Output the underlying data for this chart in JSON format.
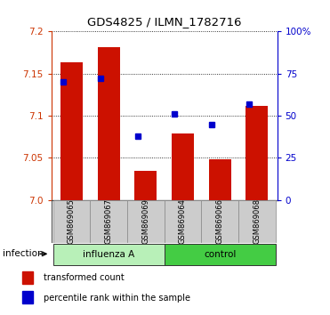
{
  "title": "GDS4825 / ILMN_1782716",
  "samples": [
    "GSM869065",
    "GSM869067",
    "GSM869069",
    "GSM869064",
    "GSM869066",
    "GSM869068"
  ],
  "red_values": [
    7.163,
    7.181,
    7.035,
    7.079,
    7.048,
    7.112
  ],
  "blue_percentiles": [
    70,
    72,
    38,
    51,
    45,
    57
  ],
  "y_min": 7.0,
  "y_max": 7.2,
  "y_ticks": [
    7.0,
    7.05,
    7.1,
    7.15,
    7.2
  ],
  "y2_ticks": [
    0,
    25,
    50,
    75,
    100
  ],
  "y2_labels": [
    "0",
    "25",
    "50",
    "75",
    "100%"
  ],
  "groups": [
    {
      "label": "influenza A",
      "indices": [
        0,
        1,
        2
      ],
      "color": "#b8f0b8"
    },
    {
      "label": "control",
      "indices": [
        3,
        4,
        5
      ],
      "color": "#44cc44"
    }
  ],
  "infection_label": "infection",
  "legend_red": "transformed count",
  "legend_blue": "percentile rank within the sample",
  "bar_color": "#cc1100",
  "dot_color": "#0000cc",
  "bg_color": "#cccccc",
  "plot_bg": "#ffffff",
  "red_label_color": "#cc3300",
  "blue_label_color": "#0000cc"
}
